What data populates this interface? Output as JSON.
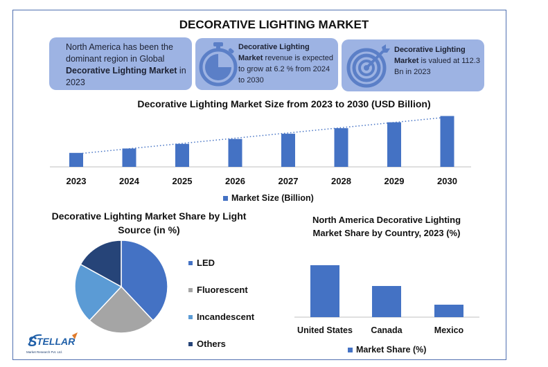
{
  "title": "DECORATIVE LIGHTING MARKET",
  "cards": [
    {
      "pre": "North America has been the dominant region in Global ",
      "bold": "Decorative Lighting Market",
      "post": " in 2023",
      "icon": "text-card"
    },
    {
      "pre": "",
      "bold": "Decorative Lighting Market",
      "post": " revenue is expected to grow at 6.2 % from 2024 to 2030",
      "icon": "stopwatch-icon"
    },
    {
      "pre": "",
      "bold": "Decorative Lighting Market",
      "post": " is valued at 112.3 Bn in 2023",
      "icon": "target-icon"
    }
  ],
  "colors": {
    "accent": "#4472c4",
    "card_bg": "#9db3e3",
    "icon_fill": "#5b7fc7",
    "gray": "#a5a5a5",
    "light_blue": "#5b9bd5",
    "navy": "#264478"
  },
  "chart_data": [
    {
      "type": "bar",
      "title": "Decorative Lighting Market Size from 2023 to 2030 (USD Billion)",
      "categories": [
        "2023",
        "2024",
        "2025",
        "2026",
        "2027",
        "2028",
        "2029",
        "2030"
      ],
      "series": [
        {
          "name": "Market Size (Billion)",
          "values": [
            112.3,
            119.3,
            126.7,
            134.5,
            142.9,
            151.7,
            161.1,
            171.1
          ]
        }
      ],
      "trendline": "linear-dotted",
      "legend": "bottom"
    },
    {
      "type": "pie",
      "title": "Decorative Lighting Market Share by Light Source (in %)",
      "labels": [
        "LED",
        "Fluorescent",
        "Incandescent",
        "Others"
      ],
      "values": [
        38,
        24,
        21,
        17
      ],
      "colors": [
        "#4472c4",
        "#a5a5a5",
        "#5b9bd5",
        "#264478"
      ],
      "legend": "right"
    },
    {
      "type": "bar",
      "title": "North America Decorative Lighting Market Share by Country, 2023 (%)",
      "categories": [
        "United States",
        "Canada",
        "Mexico"
      ],
      "series": [
        {
          "name": "Market Share (%)",
          "values": [
            75,
            45,
            18
          ]
        }
      ],
      "legend": "bottom"
    }
  ],
  "logo": {
    "text": "TELLAR",
    "initial": "S",
    "sub": "Market Research Pvt. Ltd."
  }
}
